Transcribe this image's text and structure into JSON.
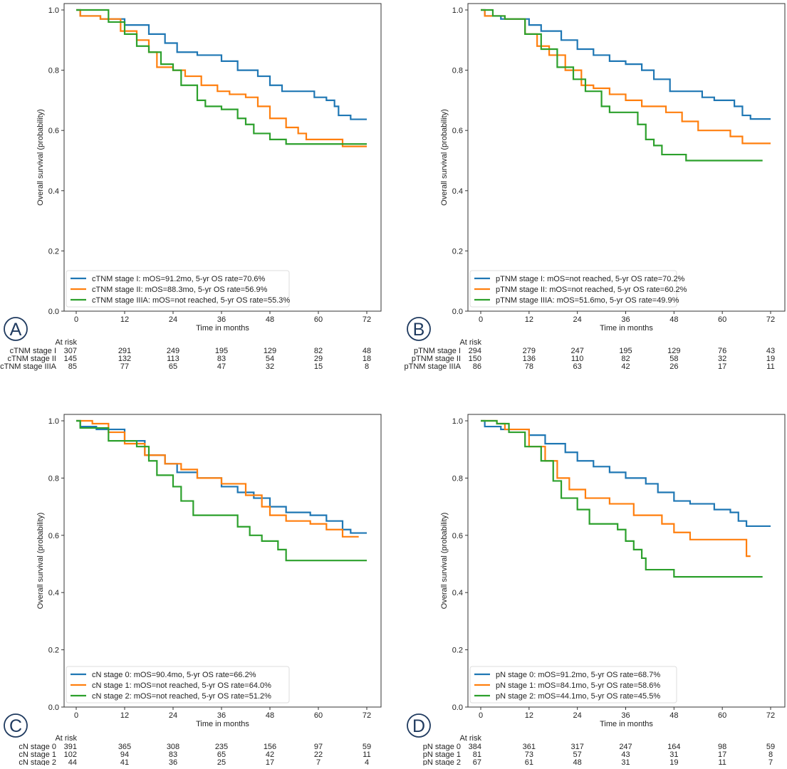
{
  "colors": [
    "#1f77b4",
    "#ff7f0e",
    "#2ca02c"
  ],
  "badge_color": "#1f3a5f",
  "chart_data": [
    {
      "type": "line",
      "panel": "A",
      "xlabel": "Time in months",
      "ylabel": "Overall survival (probability)",
      "xlim": [
        0,
        72
      ],
      "ylim": [
        0,
        1.0
      ],
      "xticks": [
        0,
        12,
        24,
        36,
        48,
        60,
        72
      ],
      "yticks": [
        "0.0",
        "0.2",
        "0.4",
        "0.6",
        "0.8",
        "1.0"
      ],
      "legend_position": "lower-left",
      "series": [
        {
          "name": "cTNM stage I: mOS=91.2mo, 5-yr OS rate=70.6%",
          "risk_label": "cTNM stage I",
          "at_risk": [
            307,
            291,
            249,
            195,
            129,
            82,
            48
          ],
          "steps": [
            [
              0,
              1
            ],
            [
              1,
              0.98
            ],
            [
              6,
              0.97
            ],
            [
              12,
              0.95
            ],
            [
              18,
              0.92
            ],
            [
              22,
              0.89
            ],
            [
              25,
              0.86
            ],
            [
              30,
              0.85
            ],
            [
              36,
              0.83
            ],
            [
              40,
              0.8
            ],
            [
              45,
              0.78
            ],
            [
              48,
              0.75
            ],
            [
              51,
              0.73
            ],
            [
              59,
              0.71
            ],
            [
              62,
              0.7
            ],
            [
              64,
              0.68
            ],
            [
              65,
              0.65
            ],
            [
              68,
              0.637
            ],
            [
              72,
              0.637
            ]
          ]
        },
        {
          "name": "cTNM stage II: mOS=88.3mo, 5-yr OS rate=56.9%",
          "risk_label": "cTNM stage II",
          "at_risk": [
            145,
            132,
            113,
            83,
            54,
            29,
            18
          ],
          "steps": [
            [
              0,
              1
            ],
            [
              1,
              0.98
            ],
            [
              6,
              0.97
            ],
            [
              11,
              0.93
            ],
            [
              15,
              0.9
            ],
            [
              18,
              0.86
            ],
            [
              20,
              0.81
            ],
            [
              24,
              0.8
            ],
            [
              27,
              0.78
            ],
            [
              31,
              0.75
            ],
            [
              35,
              0.73
            ],
            [
              38,
              0.72
            ],
            [
              42,
              0.71
            ],
            [
              45,
              0.68
            ],
            [
              48,
              0.64
            ],
            [
              52,
              0.61
            ],
            [
              55,
              0.59
            ],
            [
              57,
              0.57
            ],
            [
              66,
              0.547
            ],
            [
              72,
              0.547
            ]
          ]
        },
        {
          "name": "cTNM stage IIIA: mOS=not reached, 5-yr OS rate=55.3%",
          "risk_label": "cTNM stage IIIA",
          "at_risk": [
            85,
            77,
            65,
            47,
            32,
            15,
            8
          ],
          "steps": [
            [
              0,
              1
            ],
            [
              8,
              0.96
            ],
            [
              12,
              0.92
            ],
            [
              15,
              0.88
            ],
            [
              18,
              0.86
            ],
            [
              21,
              0.82
            ],
            [
              24,
              0.8
            ],
            [
              26,
              0.75
            ],
            [
              30,
              0.7
            ],
            [
              32,
              0.68
            ],
            [
              36,
              0.67
            ],
            [
              40,
              0.64
            ],
            [
              42,
              0.62
            ],
            [
              44,
              0.59
            ],
            [
              48,
              0.57
            ],
            [
              52,
              0.555
            ],
            [
              72,
              0.555
            ]
          ]
        }
      ]
    },
    {
      "type": "line",
      "panel": "B",
      "xlabel": "Time in months",
      "ylabel": "Overall survival (probability)",
      "xlim": [
        0,
        72
      ],
      "ylim": [
        0,
        1.0
      ],
      "xticks": [
        0,
        12,
        24,
        36,
        48,
        60,
        72
      ],
      "yticks": [
        "0.0",
        "0.2",
        "0.4",
        "0.6",
        "0.8",
        "1.0"
      ],
      "legend_position": "lower-left",
      "series": [
        {
          "name": "pTNM stage I: mOS=not reached, 5-yr OS rate=70.2%",
          "risk_label": "pTNM stage I",
          "at_risk": [
            294,
            279,
            247,
            195,
            129,
            76,
            43
          ],
          "steps": [
            [
              0,
              1
            ],
            [
              1,
              0.98
            ],
            [
              5,
              0.97
            ],
            [
              12,
              0.95
            ],
            [
              15,
              0.93
            ],
            [
              20,
              0.9
            ],
            [
              24,
              0.87
            ],
            [
              28,
              0.85
            ],
            [
              32,
              0.83
            ],
            [
              36,
              0.82
            ],
            [
              40,
              0.8
            ],
            [
              43,
              0.77
            ],
            [
              47,
              0.73
            ],
            [
              52,
              0.73
            ],
            [
              55,
              0.71
            ],
            [
              58,
              0.7
            ],
            [
              63,
              0.68
            ],
            [
              65,
              0.65
            ],
            [
              67,
              0.638
            ],
            [
              72,
              0.638
            ]
          ]
        },
        {
          "name": "pTNM stage II: mOS=not reached, 5-yr OS rate=60.2%",
          "risk_label": "pTNM stage II",
          "at_risk": [
            150,
            136,
            110,
            82,
            58,
            32,
            19
          ],
          "steps": [
            [
              0,
              1
            ],
            [
              1,
              0.98
            ],
            [
              6,
              0.97
            ],
            [
              11,
              0.92
            ],
            [
              14,
              0.88
            ],
            [
              17,
              0.85
            ],
            [
              21,
              0.8
            ],
            [
              25,
              0.75
            ],
            [
              28,
              0.74
            ],
            [
              32,
              0.72
            ],
            [
              36,
              0.7
            ],
            [
              40,
              0.68
            ],
            [
              46,
              0.66
            ],
            [
              50,
              0.63
            ],
            [
              54,
              0.6
            ],
            [
              62,
              0.58
            ],
            [
              65,
              0.557
            ],
            [
              72,
              0.557
            ]
          ]
        },
        {
          "name": "pTNM stage IIIA: mOS=51.6mo, 5-yr OS rate=49.9%",
          "risk_label": "pTNM stage IIIA",
          "at_risk": [
            86,
            78,
            63,
            42,
            26,
            17,
            11
          ],
          "steps": [
            [
              0,
              1
            ],
            [
              3,
              0.98
            ],
            [
              6,
              0.97
            ],
            [
              11,
              0.92
            ],
            [
              15,
              0.87
            ],
            [
              19,
              0.81
            ],
            [
              23,
              0.77
            ],
            [
              26,
              0.73
            ],
            [
              30,
              0.68
            ],
            [
              32,
              0.66
            ],
            [
              39,
              0.62
            ],
            [
              41,
              0.57
            ],
            [
              43,
              0.55
            ],
            [
              45,
              0.52
            ],
            [
              51,
              0.5
            ],
            [
              70,
              0.5
            ]
          ]
        }
      ]
    },
    {
      "type": "line",
      "panel": "C",
      "xlabel": "Time in months",
      "ylabel": "Overall survival (probability)",
      "xlim": [
        0,
        72
      ],
      "ylim": [
        0,
        1.0
      ],
      "xticks": [
        0,
        12,
        24,
        36,
        48,
        60,
        72
      ],
      "yticks": [
        "0.0",
        "0.2",
        "0.4",
        "0.6",
        "0.8",
        "1.0"
      ],
      "legend_position": "lower-left",
      "series": [
        {
          "name": "cN stage 0: mOS=90.4mo, 5-yr OS rate=66.2%",
          "risk_label": "cN stage 0",
          "at_risk": [
            391,
            365,
            308,
            235,
            156,
            97,
            59
          ],
          "steps": [
            [
              0,
              1
            ],
            [
              1,
              0.98
            ],
            [
              5,
              0.97
            ],
            [
              12,
              0.93
            ],
            [
              17,
              0.88
            ],
            [
              22,
              0.85
            ],
            [
              25,
              0.82
            ],
            [
              30,
              0.8
            ],
            [
              36,
              0.77
            ],
            [
              40,
              0.75
            ],
            [
              44,
              0.73
            ],
            [
              48,
              0.7
            ],
            [
              52,
              0.68
            ],
            [
              58,
              0.67
            ],
            [
              62,
              0.65
            ],
            [
              66,
              0.62
            ],
            [
              68,
              0.608
            ],
            [
              72,
              0.608
            ]
          ]
        },
        {
          "name": "cN stage 1: mOS=not reached, 5-yr OS rate=64.0%",
          "risk_label": "cN stage 1",
          "at_risk": [
            102,
            94,
            83,
            65,
            42,
            22,
            11
          ],
          "steps": [
            [
              0,
              1
            ],
            [
              4,
              0.99
            ],
            [
              8,
              0.96
            ],
            [
              12,
              0.92
            ],
            [
              17,
              0.88
            ],
            [
              22,
              0.85
            ],
            [
              26,
              0.83
            ],
            [
              30,
              0.8
            ],
            [
              36,
              0.78
            ],
            [
              42,
              0.74
            ],
            [
              46,
              0.7
            ],
            [
              48,
              0.67
            ],
            [
              52,
              0.65
            ],
            [
              58,
              0.64
            ],
            [
              62,
              0.62
            ],
            [
              66,
              0.595
            ],
            [
              70,
              0.595
            ]
          ]
        },
        {
          "name": "cN stage 2: mOS=not reached, 5-yr OS rate=51.2%",
          "risk_label": "cN stage 2",
          "at_risk": [
            44,
            41,
            36,
            25,
            17,
            7,
            4
          ],
          "steps": [
            [
              0,
              1
            ],
            [
              1,
              0.975
            ],
            [
              8,
              0.93
            ],
            [
              15,
              0.91
            ],
            [
              18,
              0.86
            ],
            [
              20,
              0.81
            ],
            [
              24,
              0.77
            ],
            [
              26,
              0.72
            ],
            [
              29,
              0.67
            ],
            [
              40,
              0.63
            ],
            [
              43,
              0.6
            ],
            [
              46,
              0.58
            ],
            [
              50,
              0.55
            ],
            [
              52,
              0.512
            ],
            [
              72,
              0.512
            ]
          ]
        }
      ]
    },
    {
      "type": "line",
      "panel": "D",
      "xlabel": "Time in months",
      "ylabel": "Overall survival (probability)",
      "xlim": [
        0,
        72
      ],
      "ylim": [
        0,
        1.0
      ],
      "xticks": [
        0,
        12,
        24,
        36,
        48,
        60,
        72
      ],
      "yticks": [
        "0.0",
        "0.2",
        "0.4",
        "0.6",
        "0.8",
        "1.0"
      ],
      "legend_position": "lower-left",
      "series": [
        {
          "name": "pN stage 0: mOS=91.2mo, 5-yr OS rate=68.7%",
          "risk_label": "pN stage 0",
          "at_risk": [
            384,
            361,
            317,
            247,
            164,
            98,
            59
          ],
          "steps": [
            [
              0,
              1
            ],
            [
              1,
              0.98
            ],
            [
              5,
              0.97
            ],
            [
              12,
              0.95
            ],
            [
              16,
              0.92
            ],
            [
              21,
              0.89
            ],
            [
              24,
              0.86
            ],
            [
              28,
              0.84
            ],
            [
              32,
              0.82
            ],
            [
              36,
              0.8
            ],
            [
              41,
              0.78
            ],
            [
              44,
              0.75
            ],
            [
              48,
              0.72
            ],
            [
              52,
              0.71
            ],
            [
              58,
              0.69
            ],
            [
              62,
              0.68
            ],
            [
              64,
              0.65
            ],
            [
              66,
              0.632
            ],
            [
              72,
              0.632
            ]
          ]
        },
        {
          "name": "pN stage 1: mOS=84.1mo, 5-yr OS rate=58.6%",
          "risk_label": "pN stage 1",
          "at_risk": [
            81,
            73,
            57,
            43,
            31,
            17,
            8
          ],
          "steps": [
            [
              0,
              1
            ],
            [
              4,
              0.99
            ],
            [
              6,
              0.97
            ],
            [
              12,
              0.91
            ],
            [
              16,
              0.86
            ],
            [
              19,
              0.8
            ],
            [
              22,
              0.76
            ],
            [
              26,
              0.73
            ],
            [
              32,
              0.71
            ],
            [
              38,
              0.67
            ],
            [
              45,
              0.64
            ],
            [
              48,
              0.61
            ],
            [
              52,
              0.585
            ],
            [
              66,
              0.527
            ],
            [
              67,
              0.527
            ]
          ]
        },
        {
          "name": "pN stage 2: mOS=44.1mo, 5-yr OS rate=45.5%",
          "risk_label": "pN stage 2",
          "at_risk": [
            67,
            61,
            48,
            31,
            19,
            11,
            7
          ],
          "steps": [
            [
              0,
              1
            ],
            [
              4,
              0.99
            ],
            [
              7,
              0.96
            ],
            [
              11,
              0.91
            ],
            [
              15,
              0.86
            ],
            [
              18,
              0.79
            ],
            [
              20,
              0.73
            ],
            [
              24,
              0.69
            ],
            [
              27,
              0.64
            ],
            [
              34,
              0.62
            ],
            [
              36,
              0.58
            ],
            [
              38,
              0.55
            ],
            [
              40,
              0.52
            ],
            [
              41,
              0.48
            ],
            [
              48,
              0.455
            ],
            [
              70,
              0.455
            ]
          ]
        }
      ]
    }
  ],
  "at_risk_title": "At risk"
}
